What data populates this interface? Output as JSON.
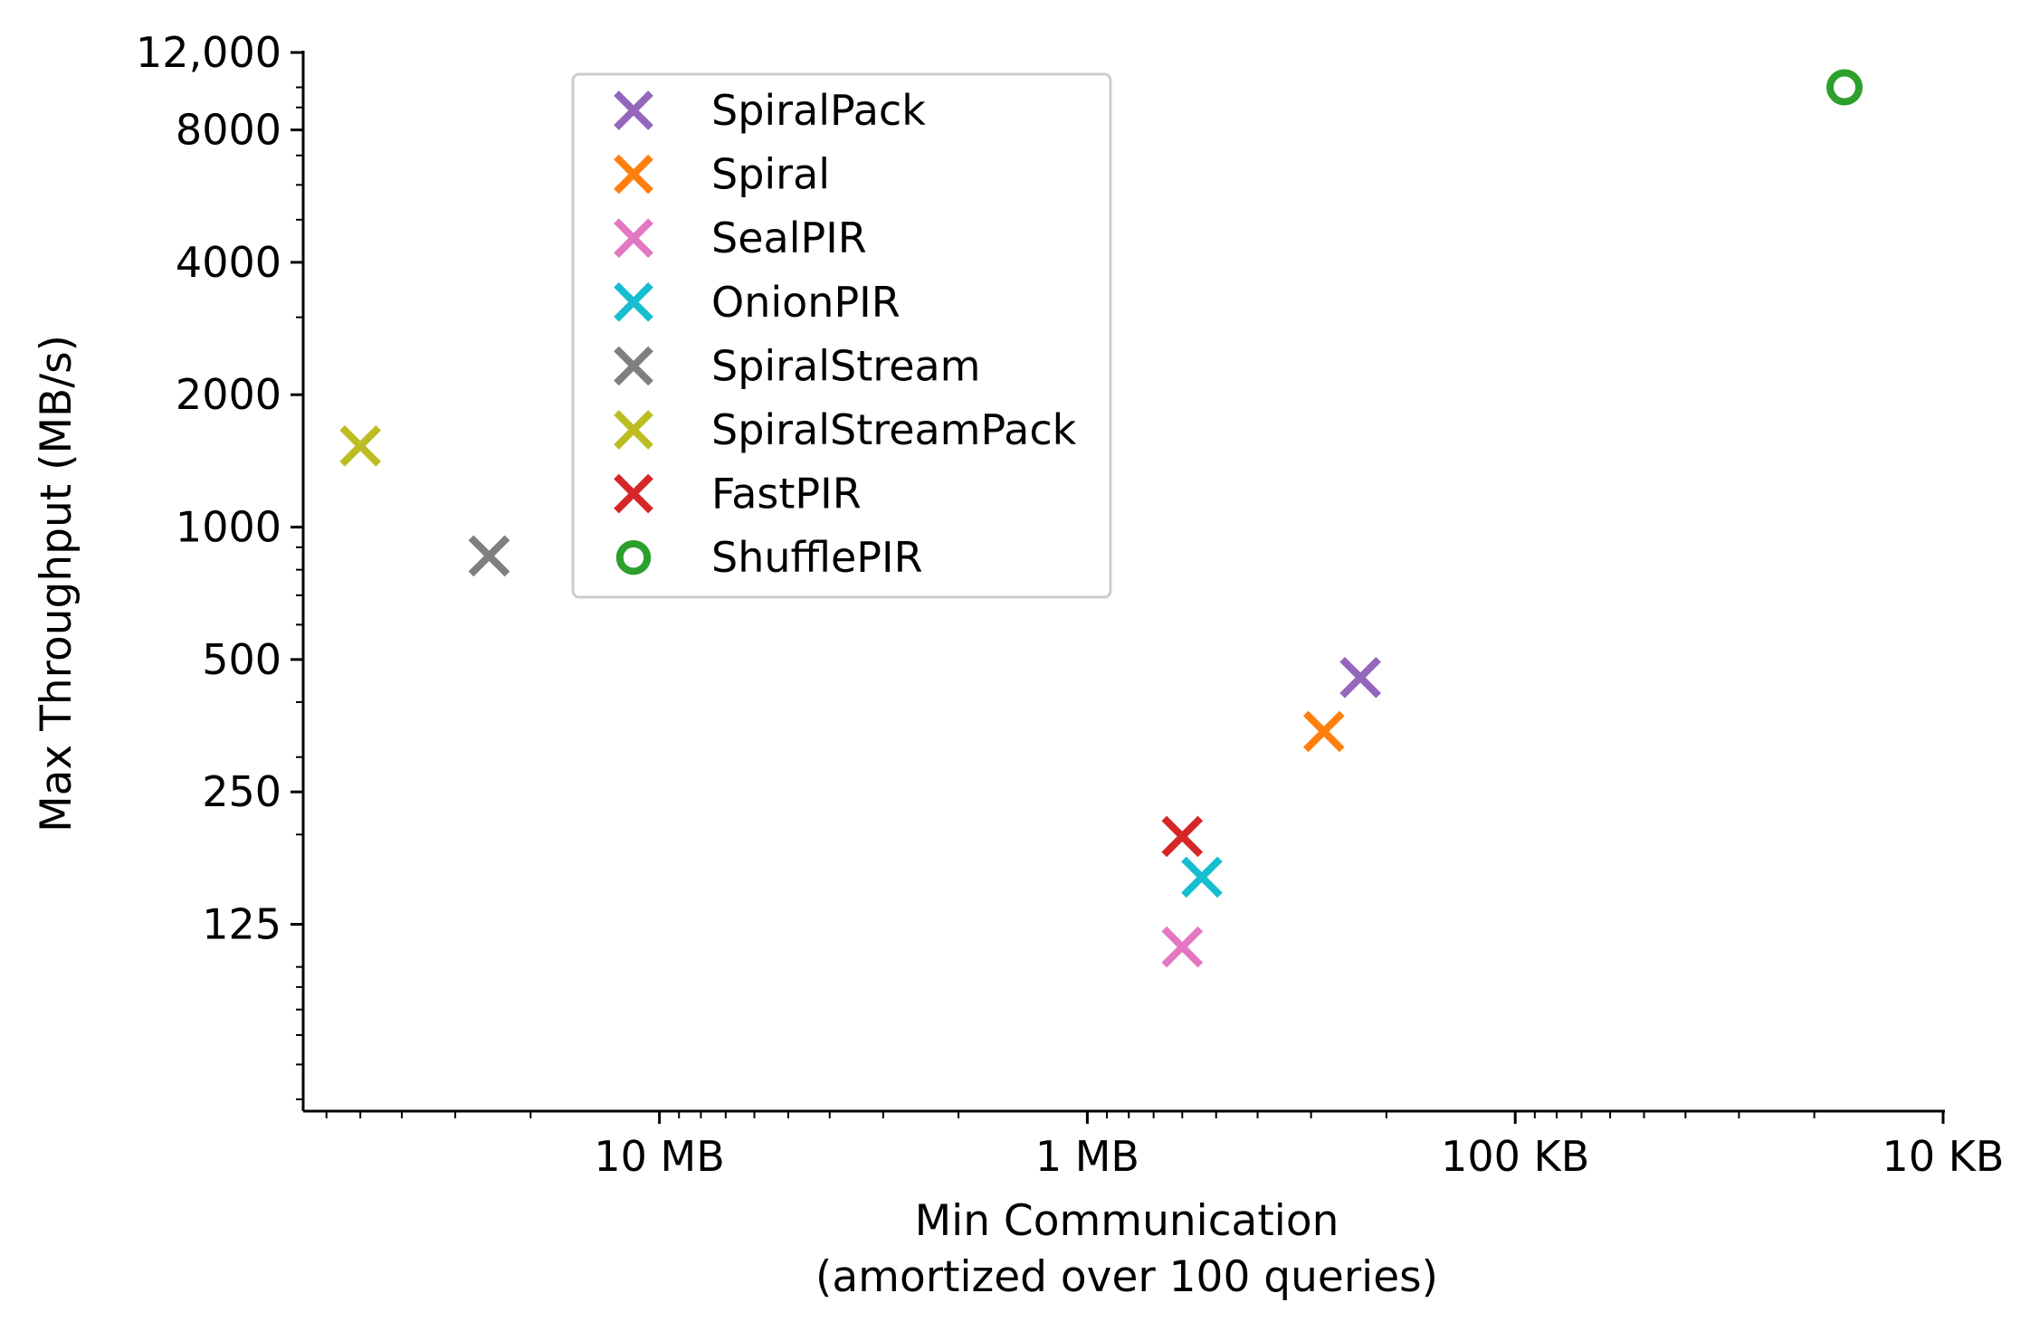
{
  "chart_data": {
    "type": "scatter",
    "title": "",
    "xlabel": "Min Communication",
    "xlabel_sub": "(amortized over 100 queries)",
    "ylabel": "Max Throughput (MB/s)",
    "x_scale": "log",
    "x_direction": "reversed",
    "x_unit": "MB",
    "xlim": [
      68,
      0.01
    ],
    "x_ticks": [
      {
        "value": 10,
        "label": "10 MB"
      },
      {
        "value": 1,
        "label": "1 MB"
      },
      {
        "value": 0.1,
        "label": "100 KB"
      },
      {
        "value": 0.01,
        "label": "10 KB"
      }
    ],
    "y_scale": "log",
    "y_unit": "MB/s",
    "ylim": [
      47,
      12000
    ],
    "y_ticks": [
      {
        "value": 125,
        "label": "125"
      },
      {
        "value": 250,
        "label": "250"
      },
      {
        "value": 500,
        "label": "500"
      },
      {
        "value": 1000,
        "label": "1000"
      },
      {
        "value": 2000,
        "label": "2000"
      },
      {
        "value": 4000,
        "label": "4000"
      },
      {
        "value": 8000,
        "label": "8000"
      },
      {
        "value": 12000,
        "label": "12,000"
      }
    ],
    "grid": false,
    "legend_position": "top-left",
    "series": [
      {
        "name": "SpiralPack",
        "color": "#9467bd",
        "marker": "x",
        "x": 0.23,
        "y": 455
      },
      {
        "name": "Spiral",
        "color": "#ff7f0e",
        "marker": "x",
        "x": 0.28,
        "y": 343
      },
      {
        "name": "SealPIR",
        "color": "#e377c2",
        "marker": "x",
        "x": 0.6,
        "y": 111
      },
      {
        "name": "OnionPIR",
        "color": "#17becf",
        "marker": "x",
        "x": 0.54,
        "y": 160
      },
      {
        "name": "SpiralStream",
        "color": "#7f7f7f",
        "marker": "x",
        "x": 25,
        "y": 860
      },
      {
        "name": "SpiralStreamPack",
        "color": "#bcbd22",
        "marker": "x",
        "x": 50,
        "y": 1530
      },
      {
        "name": "FastPIR",
        "color": "#d62728",
        "marker": "x",
        "x": 0.6,
        "y": 198
      },
      {
        "name": "ShufflePIR",
        "color": "#2ca02c",
        "marker": "o",
        "x": 0.017,
        "y": 10000
      }
    ]
  }
}
